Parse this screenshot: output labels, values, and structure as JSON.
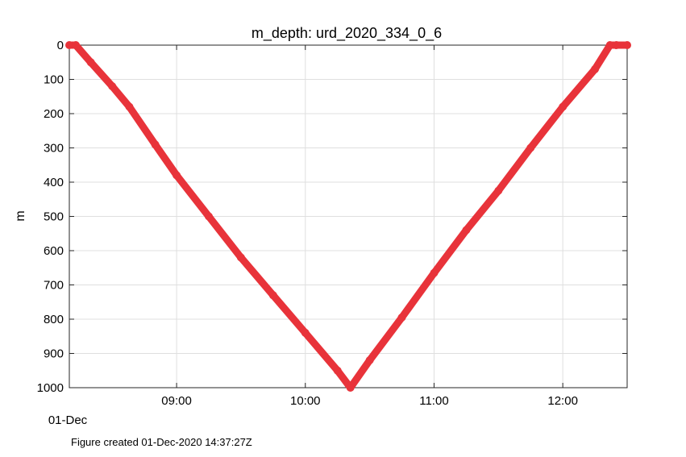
{
  "chart_data": {
    "type": "line",
    "title": "m_depth: urd_2020_334_0_6",
    "xlabel": "",
    "ylabel": "m",
    "x_date_label": "01-Dec",
    "x_tick_labels": [
      "09:00",
      "10:00",
      "11:00",
      "12:00"
    ],
    "x_ticks": [
      "09:00",
      "10:00",
      "11:00",
      "12:00"
    ],
    "xlim": [
      "08:10",
      "12:30"
    ],
    "y_ticks": [
      0,
      100,
      200,
      300,
      400,
      500,
      600,
      700,
      800,
      900,
      1000
    ],
    "ylim": [
      0,
      1000
    ],
    "y_reversed": true,
    "grid": true,
    "color": "#e8333a",
    "series": [
      {
        "x": [
          "08:10",
          "08:13",
          "08:20",
          "08:30",
          "08:38",
          "08:50",
          "09:00",
          "09:15",
          "09:30",
          "09:45",
          "10:00",
          "10:15",
          "10:21",
          "10:30",
          "10:45",
          "11:00",
          "11:15",
          "11:30",
          "11:45",
          "12:00",
          "12:15",
          "12:22",
          "12:25",
          "12:30"
        ],
        "y": [
          0,
          0,
          50,
          120,
          180,
          290,
          380,
          500,
          620,
          730,
          840,
          950,
          1000,
          920,
          795,
          665,
          540,
          425,
          300,
          180,
          70,
          0,
          0,
          0
        ]
      }
    ]
  },
  "footer": "Figure created 01-Dec-2020 14:37:27Z"
}
